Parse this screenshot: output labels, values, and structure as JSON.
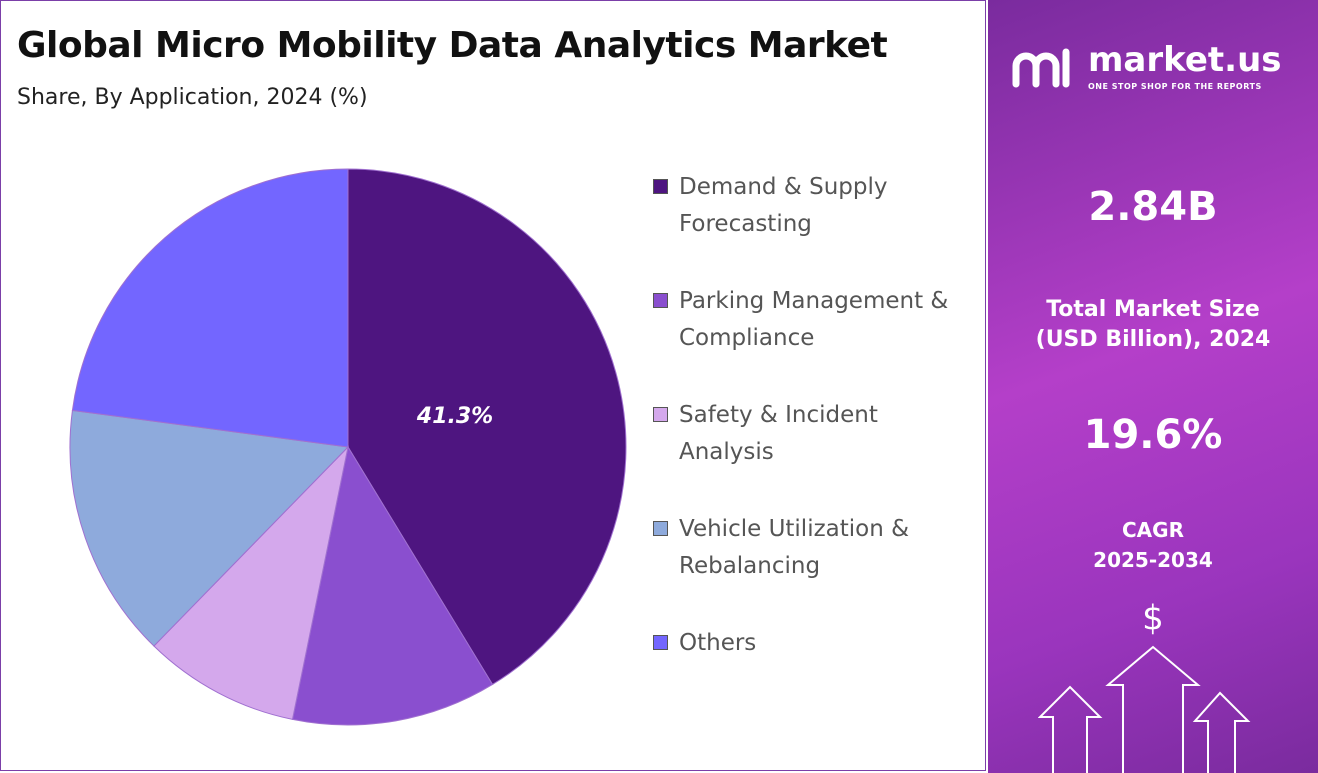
{
  "chart_data": {
    "type": "pie",
    "title": "Global Micro Mobility Data Analytics Market",
    "subtitle": "Share, By Application, 2024 (%)",
    "categories": [
      "Demand & Supply Forecasting",
      "Parking Management & Compliance",
      "Safety & Incident Analysis",
      "Vehicle Utilization & Rebalancing",
      "Others"
    ],
    "values": [
      41.3,
      11.9,
      9.1,
      14.8,
      22.9
    ],
    "value_labels": [
      "41.3%",
      null,
      null,
      null,
      null
    ],
    "colors": [
      "#4e1580",
      "#8a4fcf",
      "#d4a8ec",
      "#8eaadc",
      "#7366ff"
    ]
  },
  "side_panel": {
    "brand": "market.us",
    "tagline": "ONE STOP SHOP FOR THE REPORTS",
    "market_size": "2.84B",
    "market_size_label": "Total Market Size (USD Billion), 2024",
    "cagr": "19.6%",
    "cagr_label": "CAGR 2025-2034"
  }
}
